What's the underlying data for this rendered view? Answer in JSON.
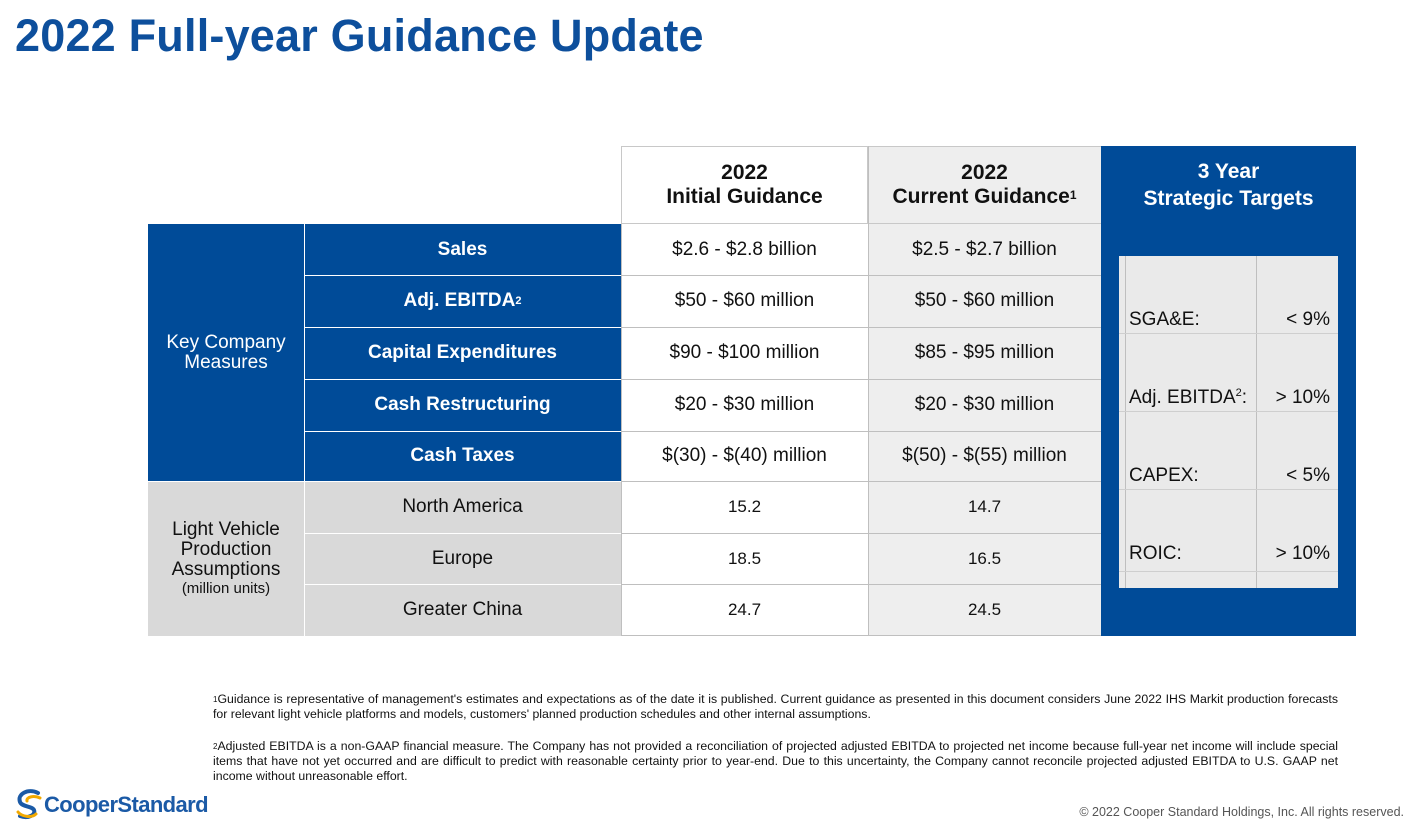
{
  "title": "2022 Full-year Guidance Update",
  "headers": {
    "initial_year": "2022",
    "initial_label": "Initial Guidance",
    "current_year": "2022",
    "current_label": "Current Guidance",
    "current_sup": "1",
    "targets_line1": "3 Year",
    "targets_line2": "Strategic Targets"
  },
  "key_measures_label": "Key Company Measures",
  "measures": [
    {
      "label": "Sales",
      "sup": "",
      "initial": "$2.6 - $2.8 billion",
      "current": "$2.5 - $2.7 billion"
    },
    {
      "label": "Adj. EBITDA",
      "sup": "2",
      "initial": "$50 - $60 million",
      "current": "$50 - $60 million"
    },
    {
      "label": "Capital Expenditures",
      "sup": "",
      "initial": "$90 - $100 million",
      "current": "$85 - $95 million"
    },
    {
      "label": "Cash Restructuring",
      "sup": "",
      "initial": "$20 - $30 million",
      "current": "$20 - $30 million"
    },
    {
      "label": "Cash Taxes",
      "sup": "",
      "initial": "$(30) - $(40) million",
      "current": "$(50) - $(55) million"
    }
  ],
  "lv_label": "Light Vehicle Production Assumptions",
  "lv_units": "(million units)",
  "production": [
    {
      "region": "North America",
      "initial": "15.2",
      "current": "14.7"
    },
    {
      "region": "Europe",
      "initial": "18.5",
      "current": "16.5"
    },
    {
      "region": "Greater China",
      "initial": "24.7",
      "current": "24.5"
    }
  ],
  "targets": [
    {
      "label": "SGA&E:",
      "sup": "",
      "value": "< 9%"
    },
    {
      "label": "Adj. EBITDA",
      "sup": "2",
      "suffix": ":",
      "value": "> 10%"
    },
    {
      "label": "CAPEX:",
      "sup": "",
      "value": "< 5%"
    },
    {
      "label": "ROIC:",
      "sup": "",
      "value": "> 10%"
    }
  ],
  "footnotes": {
    "fn1_sup": "1",
    "fn1": "Guidance is representative of management's estimates and expectations as of the date it is published.  Current guidance as presented in this document considers June 2022 IHS Markit production forecasts for relevant light vehicle platforms and models, customers' planned production schedules and other internal assumptions.",
    "fn2_sup": "2",
    "fn2": "Adjusted EBITDA is a non-GAAP financial measure. The Company has not provided a reconciliation of projected adjusted EBITDA to projected net income because full-year net income will include special items that have not yet occurred and are difficult to predict with reasonable certainty prior to year-end.  Due to this uncertainty, the Company cannot reconcile projected adjusted EBITDA to U.S. GAAP net income without unreasonable effort."
  },
  "logo_text": "CooperStandard",
  "copyright": "© 2022 Cooper Standard Holdings, Inc. All rights reserved.",
  "colors": {
    "brand_blue": "#004b98",
    "title_blue": "#0d4f9c",
    "grey": "#d9d9d9"
  }
}
